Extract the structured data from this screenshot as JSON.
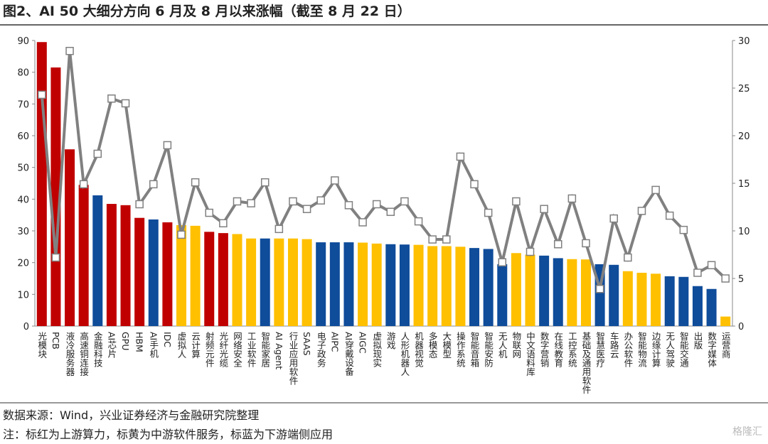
{
  "title": "图2、AI 50 大细分方向 6 月及 8 月以来涨幅（截至 8 月 22 日）",
  "source": "数据来源：Wind，兴业证券经济与金融研究院整理",
  "note": "注：标红为上游算力，标黄为中游软件服务，标蓝为下游端侧应用",
  "watermark": "格隆汇",
  "chart_data": {
    "type": "bar",
    "categories": [
      "光模块",
      "PCB",
      "液冷服务器",
      "高速铜连接",
      "金融科技",
      "AI芯片",
      "GPU",
      "HBM",
      "AI手机",
      "IDC",
      "虚拟人",
      "云计算",
      "射频元件",
      "光纤光缆",
      "网络安全",
      "工业软件",
      "智能家居",
      "AI Agent",
      "行业应用软件",
      "SAAS",
      "电子政务",
      "AIPC",
      "AI穿戴设备",
      "AIGC",
      "虚拟现实",
      "游戏",
      "人形机器人",
      "机器视觉",
      "多模态",
      "大模型",
      "操作系统",
      "智能音箱",
      "智能安防",
      "无人机",
      "物联网",
      "中文语料库",
      "数字营销",
      "在线教育",
      "工控系统",
      "基础及通用软件",
      "智慧医疗",
      "车路云",
      "办公软件",
      "智能物流",
      "边缘计算",
      "无人驾驶",
      "智能交通",
      "出版",
      "数字媒体",
      "运营商"
    ],
    "series": [
      {
        "type": "bar",
        "values": [
          89.5,
          81.5,
          55.7,
          44.5,
          41.2,
          38.5,
          38.1,
          34.1,
          33.6,
          32.7,
          31.8,
          31.6,
          29.7,
          29.3,
          29,
          27.6,
          27.6,
          27.6,
          27.6,
          27.4,
          26.4,
          26.4,
          26.4,
          26.3,
          26,
          25.8,
          25.7,
          25.6,
          25.2,
          25.2,
          25,
          24.6,
          24.3,
          19.5,
          23,
          22.5,
          22.2,
          21.4,
          21.1,
          21,
          19.5,
          19.3,
          17.3,
          16.8,
          16.5,
          15.7,
          15.5,
          12.6,
          11.7,
          3
        ],
        "colors": [
          "#c00000",
          "#c00000",
          "#c00000",
          "#c00000",
          "#0f4c9a",
          "#c00000",
          "#c00000",
          "#c00000",
          "#0f4c9a",
          "#c00000",
          "#ffc000",
          "#ffc000",
          "#c00000",
          "#c00000",
          "#ffc000",
          "#ffc000",
          "#0f4c9a",
          "#ffc000",
          "#ffc000",
          "#ffc000",
          "#0f4c9a",
          "#0f4c9a",
          "#0f4c9a",
          "#ffc000",
          "#ffc000",
          "#0f4c9a",
          "#0f4c9a",
          "#ffc000",
          "#ffc000",
          "#ffc000",
          "#ffc000",
          "#0f4c9a",
          "#0f4c9a",
          "#0f4c9a",
          "#ffc000",
          "#ffc000",
          "#0f4c9a",
          "#0f4c9a",
          "#ffc000",
          "#ffc000",
          "#0f4c9a",
          "#0f4c9a",
          "#ffc000",
          "#ffc000",
          "#ffc000",
          "#0f4c9a",
          "#0f4c9a",
          "#0f4c9a",
          "#0f4c9a",
          "#ffc000"
        ]
      },
      {
        "type": "line",
        "axis": "y2",
        "color": "#808080",
        "values": [
          24.3,
          7.2,
          28.9,
          14.9,
          18.1,
          23.9,
          23.4,
          12.8,
          14.9,
          19,
          9.6,
          15.1,
          11.9,
          10.8,
          13.1,
          12.9,
          15.1,
          10.2,
          13.1,
          12.3,
          13.2,
          15.3,
          12.7,
          10.9,
          12.8,
          12,
          13.1,
          11,
          9.1,
          9.1,
          17.8,
          14.9,
          11.9,
          6.7,
          13.1,
          7.8,
          12.3,
          8.6,
          13.4,
          8.7,
          3.9,
          11.3,
          7.2,
          12.1,
          14.3,
          11.6,
          10.1,
          5.6,
          6.4,
          5
        ]
      }
    ],
    "ylim": [
      0,
      90
    ],
    "yticks": [
      0,
      10,
      20,
      30,
      40,
      50,
      60,
      70,
      80,
      90
    ],
    "y2lim": [
      0,
      30
    ],
    "y2ticks": [
      0,
      5,
      10,
      15,
      20,
      25,
      30
    ]
  }
}
